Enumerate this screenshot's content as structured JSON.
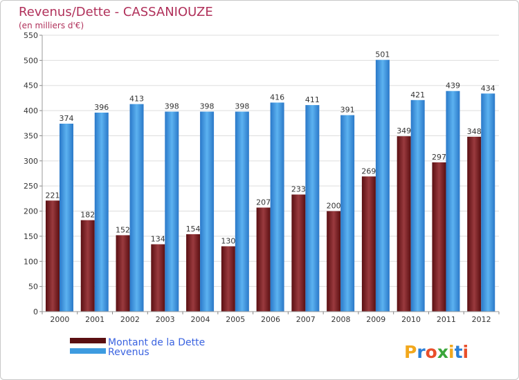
{
  "chart_data": {
    "type": "bar",
    "title": "Revenus/Dette - CASSANIOUZE",
    "subtitle": "(en milliers d'€)",
    "categories": [
      "2000",
      "2001",
      "2002",
      "2003",
      "2004",
      "2005",
      "2006",
      "2007",
      "2008",
      "2009",
      "2010",
      "2011",
      "2012"
    ],
    "series": [
      {
        "name": "Montant de la Dette",
        "color": "#7a1e22",
        "values": [
          221,
          182,
          152,
          134,
          154,
          130,
          207,
          233,
          200,
          269,
          349,
          297,
          348
        ]
      },
      {
        "name": "Revenus",
        "color": "#3d9be0",
        "values": [
          374,
          396,
          413,
          398,
          398,
          398,
          416,
          411,
          391,
          501,
          421,
          439,
          434
        ]
      }
    ],
    "ylim": [
      0,
      550
    ],
    "yticks": [
      0,
      50,
      100,
      150,
      200,
      250,
      300,
      350,
      400,
      450,
      500,
      550
    ],
    "grid": true,
    "legend": "bottom-left"
  },
  "branding": {
    "logo_letters": [
      "P",
      "r",
      "o",
      "x",
      "i",
      "t",
      "i"
    ],
    "logo_colors": [
      "#f2a81d",
      "#2b7fd6",
      "#e94f2b",
      "#3aa63a",
      "#f2a81d",
      "#2b7fd6",
      "#e94f2b"
    ]
  }
}
